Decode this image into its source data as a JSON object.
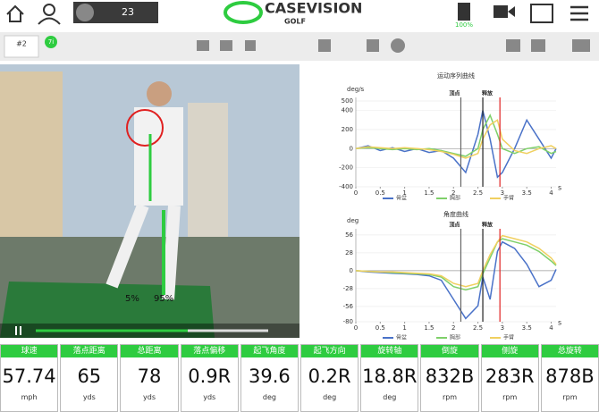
{
  "header": {
    "counter": "23",
    "brand": "CASEVISION",
    "brand_sub": "GOLF",
    "battery": "100%"
  },
  "toolbar": {
    "shot": "#2",
    "club": "7i"
  },
  "video": {
    "left_weight": "5%",
    "right_weight": "95%"
  },
  "chart_data": [
    {
      "type": "line",
      "title": "运动序列曲线",
      "y_label": "deg/s",
      "x_label": "s",
      "x": [
        0,
        0.25,
        0.5,
        0.75,
        1,
        1.25,
        1.5,
        1.75,
        2,
        2.25,
        2.5,
        2.6,
        2.75,
        2.9,
        3,
        3.25,
        3.5,
        3.75,
        4,
        4.1
      ],
      "xlim": [
        0,
        4.1
      ],
      "xticks": [
        0,
        0.5,
        1,
        1.5,
        2,
        2.5,
        3,
        3.5,
        4
      ],
      "ylim": [
        -400,
        500
      ],
      "yticks": [
        -400,
        -200,
        0,
        200,
        400,
        500
      ],
      "markers": [
        {
          "label": "顶点",
          "x": 2.15,
          "color": "#666666"
        },
        {
          "label": "释放",
          "x": 2.6,
          "color": "#222222"
        },
        {
          "x": 2.95,
          "color": "#e02020"
        }
      ],
      "series": [
        {
          "name": "骨盆",
          "color": "#4a72c8",
          "values": [
            0,
            30,
            -20,
            10,
            -30,
            0,
            -40,
            -20,
            -100,
            -250,
            150,
            400,
            100,
            -300,
            -250,
            0,
            300,
            100,
            -100,
            0
          ]
        },
        {
          "name": "胸部",
          "color": "#7fd06a",
          "values": [
            0,
            10,
            0,
            -10,
            0,
            -10,
            0,
            -20,
            -50,
            -80,
            0,
            200,
            350,
            150,
            0,
            -50,
            0,
            20,
            -50,
            -30
          ]
        },
        {
          "name": "手臂",
          "color": "#f0d060",
          "values": [
            0,
            20,
            10,
            0,
            10,
            0,
            -10,
            -30,
            -60,
            -100,
            -50,
            100,
            250,
            300,
            100,
            -20,
            -50,
            0,
            30,
            0
          ]
        }
      ]
    },
    {
      "type": "line",
      "title": "角度曲线",
      "y_label": "deg",
      "x_label": "s",
      "x": [
        0,
        0.25,
        0.5,
        0.75,
        1,
        1.25,
        1.5,
        1.75,
        2,
        2.25,
        2.5,
        2.6,
        2.75,
        2.9,
        3,
        3.25,
        3.5,
        3.75,
        4,
        4.1
      ],
      "xlim": [
        0,
        4.1
      ],
      "xticks": [
        0,
        0.5,
        1,
        1.5,
        2,
        2.5,
        3,
        3.5,
        4
      ],
      "ylim": [
        -80,
        60
      ],
      "yticks": [
        -80,
        -56,
        -28,
        0,
        28,
        56
      ],
      "markers": [
        {
          "label": "顶点",
          "x": 2.15,
          "color": "#666666"
        },
        {
          "label": "释放",
          "x": 2.6,
          "color": "#222222"
        },
        {
          "x": 2.95,
          "color": "#e02020"
        }
      ],
      "series": [
        {
          "name": "骨盆",
          "color": "#4a72c8",
          "values": [
            0,
            -2,
            -3,
            -4,
            -5,
            -6,
            -8,
            -15,
            -45,
            -75,
            -55,
            -10,
            -45,
            30,
            45,
            35,
            10,
            -25,
            -15,
            2
          ]
        },
        {
          "name": "胸部",
          "color": "#7fd06a",
          "values": [
            0,
            -1,
            -2,
            -3,
            -4,
            -5,
            -6,
            -10,
            -25,
            -30,
            -25,
            -5,
            20,
            45,
            50,
            45,
            40,
            30,
            15,
            8
          ]
        },
        {
          "name": "手臂",
          "color": "#f0d060",
          "values": [
            0,
            -1,
            -2,
            -2,
            -3,
            -4,
            -5,
            -8,
            -20,
            -25,
            -20,
            0,
            25,
            45,
            55,
            50,
            45,
            35,
            20,
            10
          ]
        }
      ]
    }
  ],
  "metrics": [
    {
      "label": "球速",
      "value": "57.74",
      "unit": "mph"
    },
    {
      "label": "落点距离",
      "value": "65",
      "unit": "yds"
    },
    {
      "label": "总距离",
      "value": "78",
      "unit": "yds"
    },
    {
      "label": "落点偏移",
      "value": "0.9R",
      "unit": "yds"
    },
    {
      "label": "起飞角度",
      "value": "39.6",
      "unit": "deg"
    },
    {
      "label": "起飞方向",
      "value": "0.2R",
      "unit": "deg"
    },
    {
      "label": "旋转轴",
      "value": "18.8R",
      "unit": "deg"
    },
    {
      "label": "倒旋",
      "value": "832B",
      "unit": "rpm"
    },
    {
      "label": "侧旋",
      "value": "283R",
      "unit": "rpm"
    },
    {
      "label": "总旋转",
      "value": "878B",
      "unit": "rpm"
    }
  ]
}
